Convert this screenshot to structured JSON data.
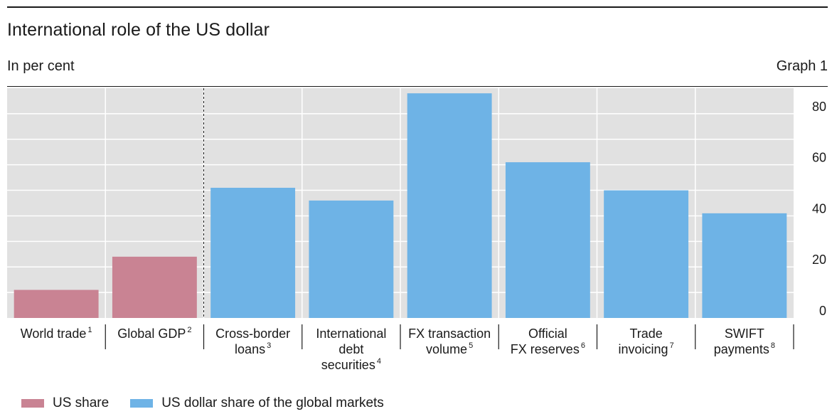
{
  "header": {
    "title": "International role of the US dollar",
    "subtitle": "In per cent",
    "graph_number": "Graph 1"
  },
  "colors": {
    "us_share": "#c98393",
    "dollar_share": "#6eb3e6",
    "plot_bg": "#e1e1e1",
    "grid": "#ffffff"
  },
  "legend": {
    "items": [
      {
        "label": "US share",
        "color": "#c98393"
      },
      {
        "label": "US dollar share of the global markets",
        "color": "#6eb3e6"
      }
    ]
  },
  "chart_data": {
    "type": "bar",
    "title": "International role of the US dollar",
    "ylabel": "In per cent",
    "ylim": [
      0,
      90
    ],
    "yticks": [
      0,
      20,
      40,
      60,
      80
    ],
    "grid": true,
    "axis_position": "right",
    "categories": [
      {
        "lines": [
          "World trade"
        ],
        "footnote": "1"
      },
      {
        "lines": [
          "Global GDP"
        ],
        "footnote": "2"
      },
      {
        "lines": [
          "Cross-border",
          "loans"
        ],
        "footnote": "3"
      },
      {
        "lines": [
          "International",
          "debt",
          "securities"
        ],
        "footnote": "4"
      },
      {
        "lines": [
          "FX transaction",
          "volume"
        ],
        "footnote": "5"
      },
      {
        "lines": [
          "Official",
          "FX reserves"
        ],
        "footnote": "6"
      },
      {
        "lines": [
          "Trade",
          "invoicing"
        ],
        "footnote": "7"
      },
      {
        "lines": [
          "SWIFT",
          "payments"
        ],
        "footnote": "8"
      }
    ],
    "values": [
      11,
      24,
      51,
      46,
      88,
      61,
      50,
      41
    ],
    "series_membership": [
      "US share",
      "US share",
      "US dollar share of the global markets",
      "US dollar share of the global markets",
      "US dollar share of the global markets",
      "US dollar share of the global markets",
      "US dollar share of the global markets",
      "US dollar share of the global markets"
    ],
    "divider_after_category_index": 1
  }
}
